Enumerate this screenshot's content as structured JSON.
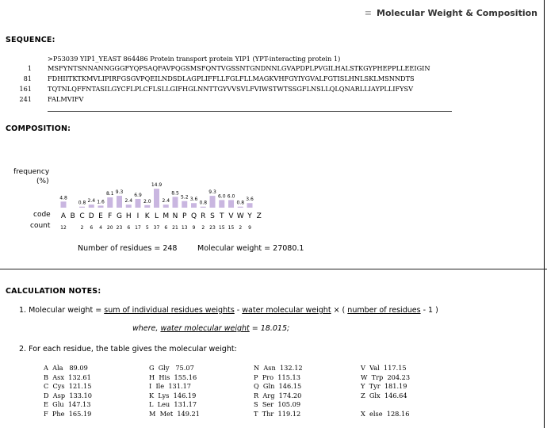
{
  "header": {
    "title": "Molecular Weight & Composition",
    "marker": "≡"
  },
  "sequence": {
    "heading": "SEQUENCE:",
    "description": ">P53039 YIP1_YEAST 864486 Protein transport protein YIP1 (YPT-interacting protein 1)",
    "rows": [
      {
        "num": "1",
        "text": "MSFYNTSNNANNGGGFYQPSAQFAVPQGSMSFQNTVGSSNTGNDNNLGVAPDPLPVGILHALSTKGYPHEPPLLEEIGIN"
      },
      {
        "num": "81",
        "text": "FDHIITKTKMVLIPIRFGSGVPQEILNDSDLAGPLIFFLLFGLFLLMAGKVHFGYIYGVALFGTISLHNLSKLMSNNDTS"
      },
      {
        "num": "161",
        "text": "TQTNLQFFNTASILGYCFLPLCFLSLLGIFHGLNNTTGYVVSVLFVIWSTWTSSGFLNSLLQLQNARLLIAYPLLIFYSV"
      },
      {
        "num": "241",
        "text": "FALMVIFV"
      }
    ]
  },
  "composition": {
    "heading": "COMPOSITION:",
    "ylabel_line1": "frequency",
    "ylabel_line2": "(%)",
    "code_label": "code",
    "count_label": "count",
    "summary_residues": "Number of residues = 248",
    "summary_weight": "Molecular weight = 27080.1"
  },
  "chart_data": {
    "type": "bar",
    "ylabel": "frequency (%)",
    "categories": [
      "A",
      "B",
      "C",
      "D",
      "E",
      "F",
      "G",
      "H",
      "I",
      "K",
      "L",
      "M",
      "N",
      "P",
      "Q",
      "R",
      "S",
      "T",
      "V",
      "W",
      "Y",
      "Z"
    ],
    "values": [
      4.8,
      0.0,
      0.8,
      2.4,
      1.6,
      8.1,
      9.3,
      2.4,
      6.9,
      2.0,
      14.9,
      2.4,
      8.5,
      5.2,
      3.6,
      0.8,
      9.3,
      6.0,
      6.0,
      0.8,
      3.6,
      0.0
    ],
    "value_labels": [
      "4.8",
      "",
      "0.8",
      "2.4",
      "1.6",
      "8.1",
      "9.3",
      "2.4",
      "6.9",
      "2.0",
      "14.9",
      "2.4",
      "8.5",
      "5.2",
      "3.6",
      "0.8",
      "9.3",
      "6.0",
      "6.0",
      "0.8",
      "3.6",
      ""
    ],
    "counts": [
      "12",
      "",
      "2",
      "6",
      "4",
      "20",
      "23",
      "6",
      "17",
      "5",
      "37",
      "6",
      "21",
      "13",
      "9",
      "2",
      "23",
      "15",
      "15",
      "2",
      "9",
      ""
    ],
    "bar_color": "#c9b6e0",
    "ylim": [
      0,
      15
    ]
  },
  "notes": {
    "heading": "CALCULATION NOTES:",
    "line1_prefix": "1. Molecular weight = ",
    "line1_link1": "sum of individual residues weights",
    "line1_minus": " - ",
    "line1_link2": "water molecular weight",
    "line1_times": " × ( ",
    "line1_link3": "number of residues",
    "line1_suffix": " - 1 )",
    "where_prefix": "where, ",
    "where_link": "water molecular weight",
    "where_suffix": " = 18.015;",
    "line2": "2. For each residue, the table gives the molecular weight:"
  },
  "weights": [
    [
      "A  Ala   89.09",
      "G  Gly   75.07",
      "N  Asn  132.12",
      "V  Val  117.15"
    ],
    [
      "B  Asx  132.61",
      "H  His  155.16",
      "P  Pro  115.13",
      "W  Trp  204.23"
    ],
    [
      "C  Cys  121.15",
      "I  Ile  131.17",
      "Q  Gln  146.15",
      "Y  Tyr  181.19"
    ],
    [
      "D  Asp  133.10",
      "K  Lys  146.19",
      "R  Arg  174.20",
      "Z  Glx  146.64"
    ],
    [
      "E  Glu  147.13",
      "L  Leu  131.17",
      "S  Ser  105.09",
      ""
    ],
    [
      "F  Phe  165.19",
      "M  Met  149.21",
      "T  Thr  119.12",
      "X  else  128.16"
    ]
  ]
}
